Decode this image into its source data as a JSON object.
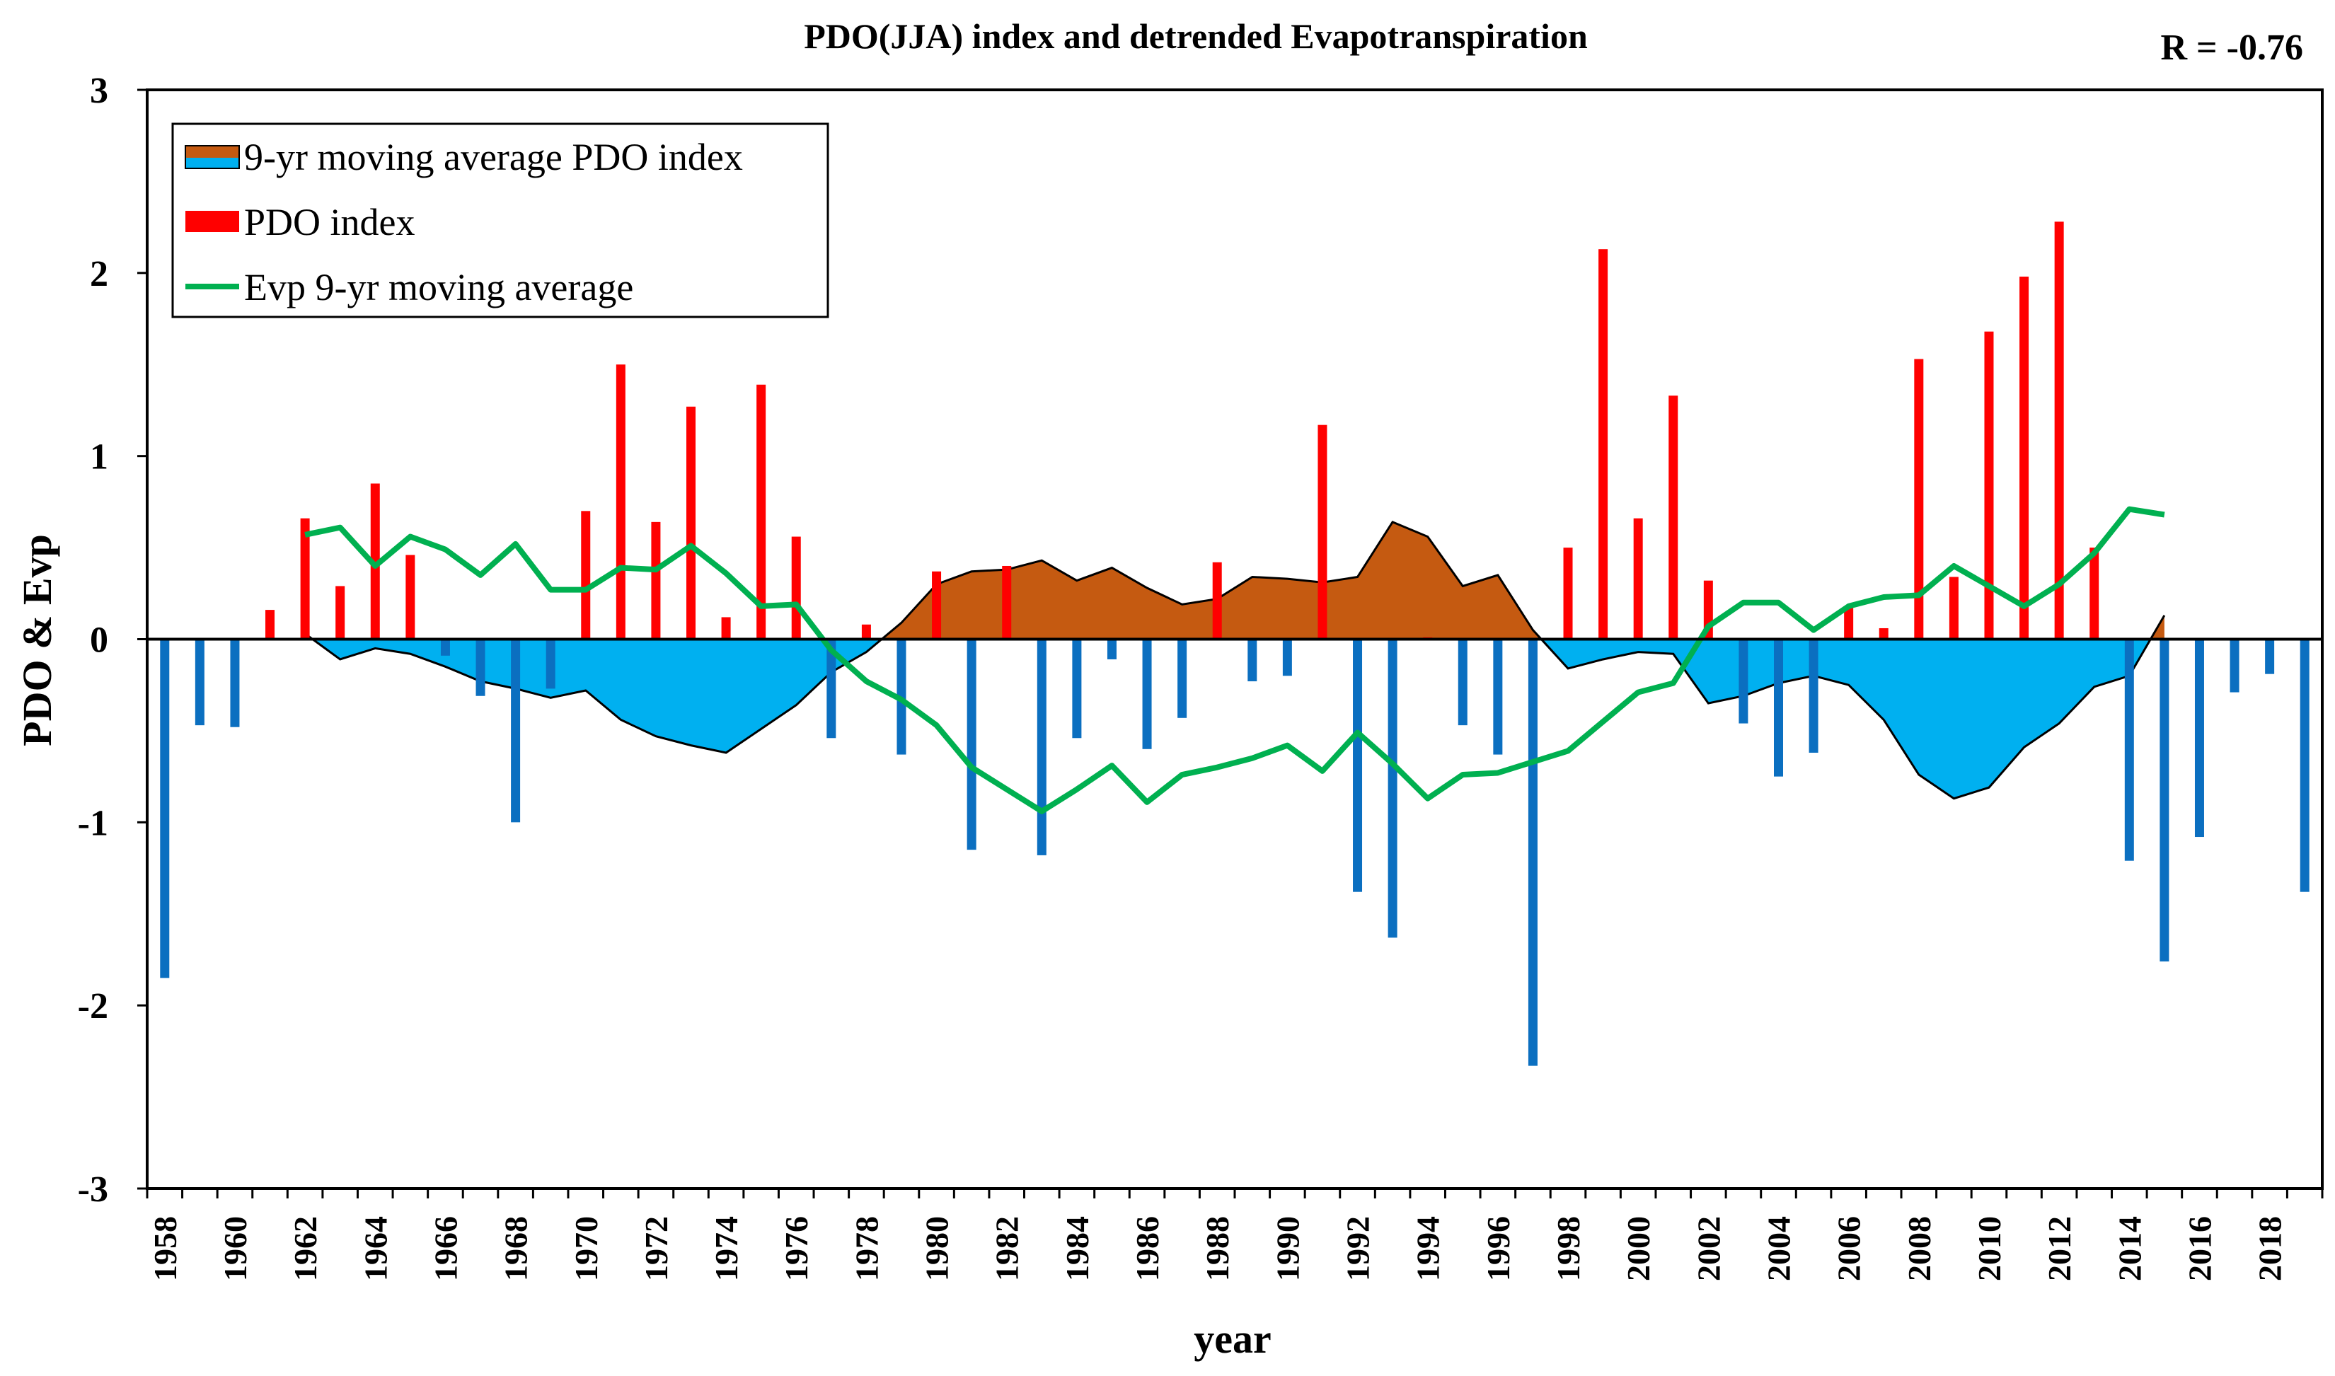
{
  "chart_data": {
    "type": "bar",
    "title": "PDO(JJA) index and detrended Evapotranspiration",
    "annotation": "R = -0.76",
    "xlabel": "year",
    "ylabel": "PDO & Evp",
    "ylim": [
      -3,
      3
    ],
    "yticks": [
      3,
      2,
      1,
      0,
      -1,
      -2,
      -3
    ],
    "xlim": [
      1958,
      2019
    ],
    "xtick_years": [
      1958,
      1960,
      1962,
      1964,
      1966,
      1968,
      1970,
      1972,
      1974,
      1976,
      1978,
      1980,
      1982,
      1984,
      1986,
      1988,
      1990,
      1992,
      1994,
      1996,
      1998,
      2000,
      2002,
      2004,
      2006,
      2008,
      2010,
      2012,
      2014,
      2016,
      2018
    ],
    "colors": {
      "pdo_positive": "#ff0000",
      "pdo_negative": "#0b6fc0",
      "ma_positive": "#c55a11",
      "ma_negative": "#00b0f0",
      "evp": "#00b050",
      "axis": "#000000"
    },
    "legend": {
      "position": "top-left",
      "entries": [
        "9-yr moving average PDO index",
        "PDO index",
        "Evp 9-yr moving average"
      ]
    },
    "series": [
      {
        "name": "PDO index",
        "type": "bar",
        "x": [
          1958,
          1959,
          1960,
          1961,
          1962,
          1963,
          1964,
          1965,
          1966,
          1967,
          1968,
          1969,
          1970,
          1971,
          1972,
          1973,
          1974,
          1975,
          1976,
          1977,
          1978,
          1979,
          1980,
          1981,
          1982,
          1983,
          1984,
          1985,
          1986,
          1987,
          1988,
          1989,
          1990,
          1991,
          1992,
          1993,
          1994,
          1995,
          1996,
          1997,
          1998,
          1999,
          2000,
          2001,
          2002,
          2003,
          2004,
          2005,
          2006,
          2007,
          2008,
          2009,
          2010,
          2011,
          2012,
          2013,
          2014,
          2015,
          2016,
          2017,
          2018,
          2019
        ],
        "values": [
          -1.85,
          -0.47,
          -0.48,
          0.16,
          0.66,
          0.29,
          0.85,
          0.46,
          -0.09,
          -0.31,
          -1.0,
          -0.27,
          0.7,
          1.5,
          0.64,
          1.27,
          0.12,
          1.39,
          0.56,
          -0.54,
          0.08,
          -0.63,
          0.37,
          -1.15,
          0.4,
          -1.18,
          -0.54,
          -0.11,
          -0.6,
          -0.43,
          0.42,
          -0.23,
          -0.2,
          1.17,
          -1.38,
          -1.63,
          0.01,
          -0.47,
          -0.63,
          -2.33,
          0.5,
          2.13,
          0.66,
          1.33,
          0.32,
          -0.46,
          -0.75,
          -0.62,
          0.17,
          0.06,
          1.53,
          0.34,
          1.68,
          1.98,
          2.28,
          0.5,
          -1.21,
          -1.76,
          -1.08,
          -0.29,
          -0.19,
          -1.38
        ]
      },
      {
        "name": "9-yr moving average PDO index",
        "type": "area",
        "x": [
          1962,
          1963,
          1964,
          1965,
          1966,
          1967,
          1968,
          1969,
          1970,
          1971,
          1972,
          1973,
          1974,
          1975,
          1976,
          1977,
          1978,
          1979,
          1980,
          1981,
          1982,
          1983,
          1984,
          1985,
          1986,
          1987,
          1988,
          1989,
          1990,
          1991,
          1992,
          1993,
          1994,
          1995,
          1996,
          1997,
          1998,
          1999,
          2000,
          2001,
          2002,
          2003,
          2004,
          2005,
          2006,
          2007,
          2008,
          2009,
          2010,
          2011,
          2012,
          2013,
          2014,
          2015
        ],
        "values": [
          0.03,
          -0.11,
          -0.05,
          -0.08,
          -0.15,
          -0.23,
          -0.27,
          -0.32,
          -0.28,
          -0.44,
          -0.53,
          -0.58,
          -0.62,
          -0.49,
          -0.36,
          -0.18,
          -0.07,
          0.09,
          0.3,
          0.37,
          0.38,
          0.43,
          0.32,
          0.39,
          0.28,
          0.19,
          0.22,
          0.34,
          0.33,
          0.31,
          0.34,
          0.64,
          0.56,
          0.29,
          0.35,
          0.05,
          -0.16,
          -0.11,
          -0.07,
          -0.08,
          -0.35,
          -0.31,
          -0.24,
          -0.2,
          -0.25,
          -0.44,
          -0.74,
          -0.87,
          -0.81,
          -0.59,
          -0.46,
          -0.26,
          -0.2,
          0.13
        ]
      },
      {
        "name": "Evp 9-yr moving average",
        "type": "line",
        "x": [
          1962,
          1963,
          1964,
          1965,
          1966,
          1967,
          1968,
          1969,
          1970,
          1971,
          1972,
          1973,
          1974,
          1975,
          1976,
          1977,
          1978,
          1979,
          1980,
          1981,
          1982,
          1983,
          1984,
          1985,
          1986,
          1987,
          1988,
          1989,
          1990,
          1991,
          1992,
          1993,
          1994,
          1995,
          1996,
          1997,
          1998,
          1999,
          2000,
          2001,
          2002,
          2003,
          2004,
          2005,
          2006,
          2007,
          2008,
          2009,
          2010,
          2011,
          2012,
          2013,
          2014,
          2015
        ],
        "values": [
          0.57,
          0.61,
          0.4,
          0.56,
          0.49,
          0.35,
          0.52,
          0.27,
          0.27,
          0.39,
          0.38,
          0.51,
          0.36,
          0.18,
          0.19,
          -0.06,
          -0.23,
          -0.33,
          -0.47,
          -0.7,
          -0.82,
          -0.94,
          -0.82,
          -0.69,
          -0.89,
          -0.74,
          -0.7,
          -0.65,
          -0.58,
          -0.72,
          -0.51,
          -0.68,
          -0.87,
          -0.74,
          -0.73,
          -0.67,
          -0.61,
          -0.45,
          -0.29,
          -0.24,
          0.07,
          0.2,
          0.2,
          0.05,
          0.18,
          0.23,
          0.24,
          0.4,
          0.29,
          0.18,
          0.3,
          0.47,
          0.71,
          0.68
        ]
      }
    ]
  }
}
